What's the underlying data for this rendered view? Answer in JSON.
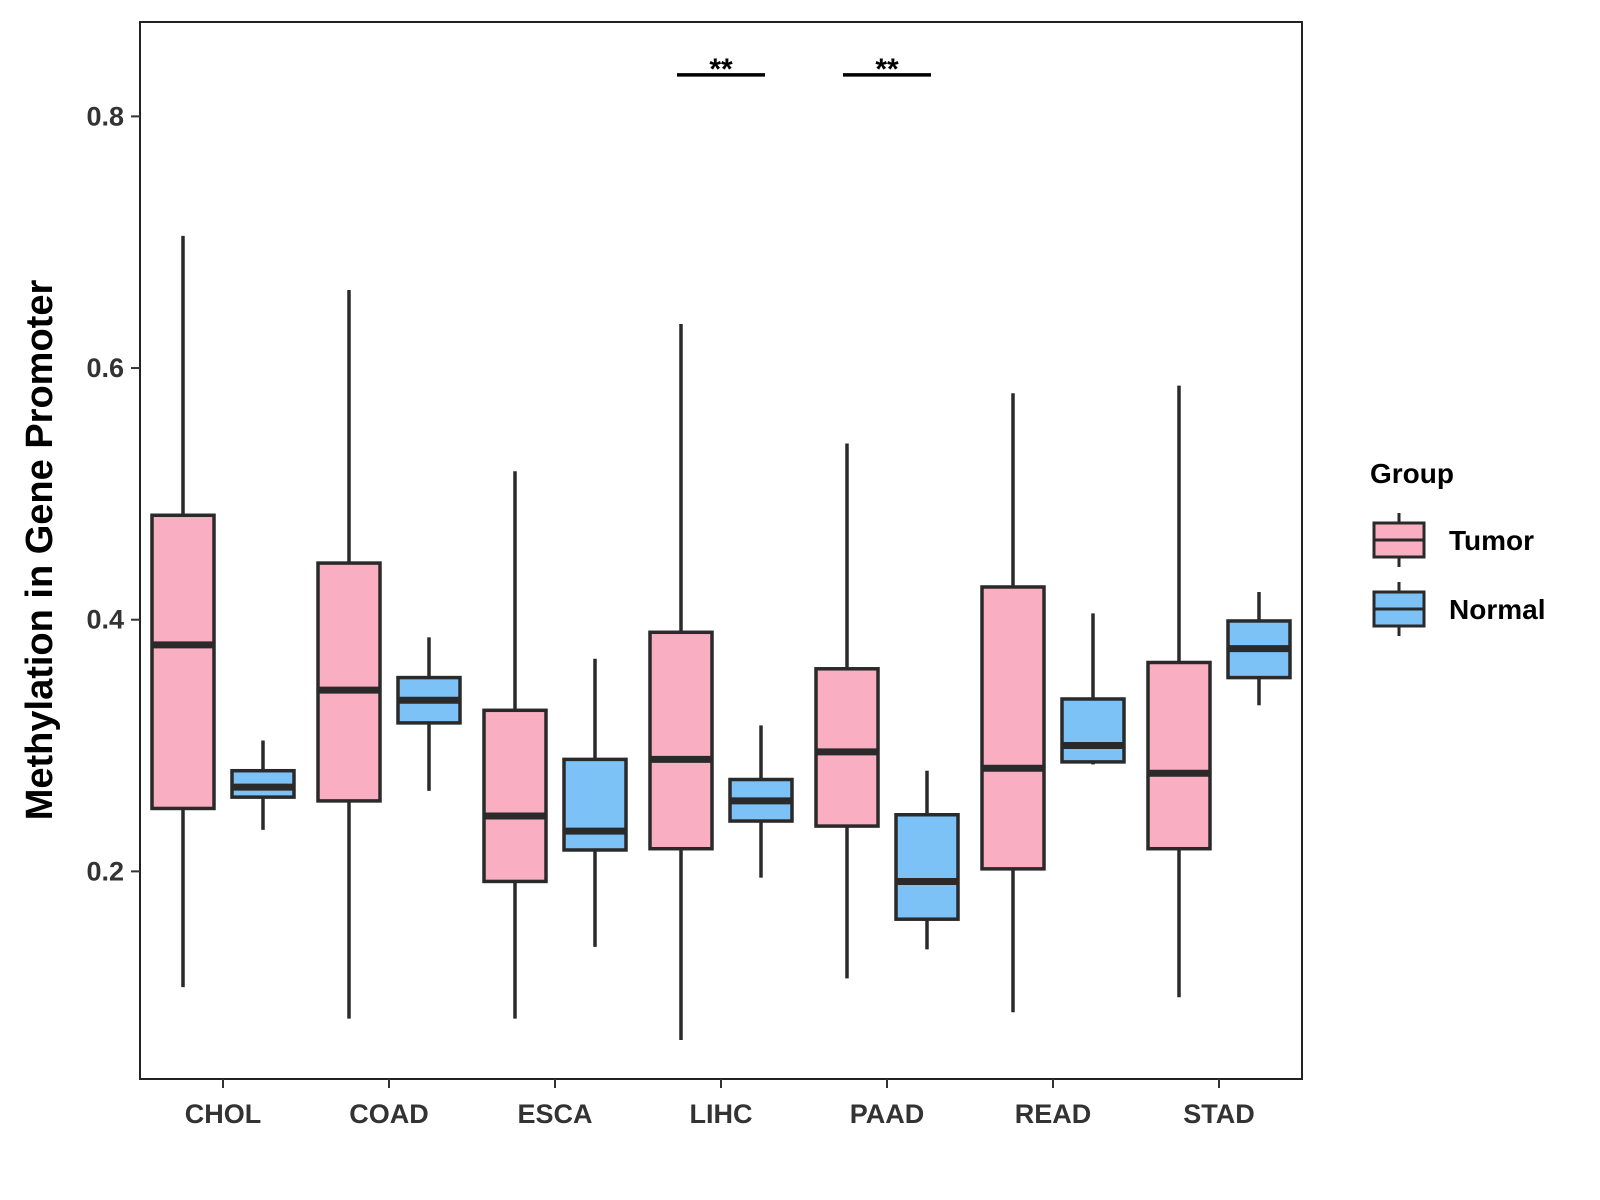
{
  "chart_data": {
    "type": "boxplot",
    "ylabel": "Methylation in Gene Promoter",
    "xlabel": "",
    "ylim": [
      0.035,
      0.875
    ],
    "yticks": [
      0.2,
      0.4,
      0.6,
      0.8
    ],
    "ytick_labels": [
      "0.2",
      "0.4",
      "0.6",
      "0.8"
    ],
    "categories": [
      "CHOL",
      "COAD",
      "ESCA",
      "LIHC",
      "PAAD",
      "READ",
      "STAD"
    ],
    "legend": {
      "title": "Group",
      "position": "right",
      "entries": [
        {
          "name": "Tumor",
          "color": "#F9AFC1"
        },
        {
          "name": "Normal",
          "color": "#7CC2F7"
        }
      ]
    },
    "series": [
      {
        "name": "Tumor",
        "color": "#F9AFC1",
        "boxes": [
          {
            "min": 0.108,
            "q1": 0.25,
            "median": 0.38,
            "q3": 0.483,
            "max": 0.705
          },
          {
            "min": 0.083,
            "q1": 0.256,
            "median": 0.344,
            "q3": 0.445,
            "max": 0.662
          },
          {
            "min": 0.083,
            "q1": 0.192,
            "median": 0.244,
            "q3": 0.328,
            "max": 0.518
          },
          {
            "min": 0.066,
            "q1": 0.218,
            "median": 0.289,
            "q3": 0.39,
            "max": 0.635
          },
          {
            "min": 0.115,
            "q1": 0.236,
            "median": 0.295,
            "q3": 0.361,
            "max": 0.54
          },
          {
            "min": 0.088,
            "q1": 0.202,
            "median": 0.282,
            "q3": 0.426,
            "max": 0.58
          },
          {
            "min": 0.1,
            "q1": 0.218,
            "median": 0.278,
            "q3": 0.366,
            "max": 0.586
          }
        ]
      },
      {
        "name": "Normal",
        "color": "#7CC2F7",
        "boxes": [
          {
            "min": 0.233,
            "q1": 0.259,
            "median": 0.267,
            "q3": 0.28,
            "max": 0.304
          },
          {
            "min": 0.264,
            "q1": 0.318,
            "median": 0.336,
            "q3": 0.354,
            "max": 0.386
          },
          {
            "min": 0.14,
            "q1": 0.217,
            "median": 0.232,
            "q3": 0.289,
            "max": 0.369
          },
          {
            "min": 0.195,
            "q1": 0.24,
            "median": 0.256,
            "q3": 0.273,
            "max": 0.316
          },
          {
            "min": 0.138,
            "q1": 0.162,
            "median": 0.192,
            "q3": 0.245,
            "max": 0.28
          },
          {
            "min": 0.285,
            "q1": 0.287,
            "median": 0.3,
            "q3": 0.337,
            "max": 0.405
          },
          {
            "min": 0.332,
            "q1": 0.354,
            "median": 0.377,
            "q3": 0.399,
            "max": 0.422
          }
        ]
      }
    ],
    "annotations": [
      {
        "category": "LIHC",
        "label": "**",
        "y": 0.833
      },
      {
        "category": "PAAD",
        "label": "**",
        "y": 0.833
      }
    ]
  }
}
